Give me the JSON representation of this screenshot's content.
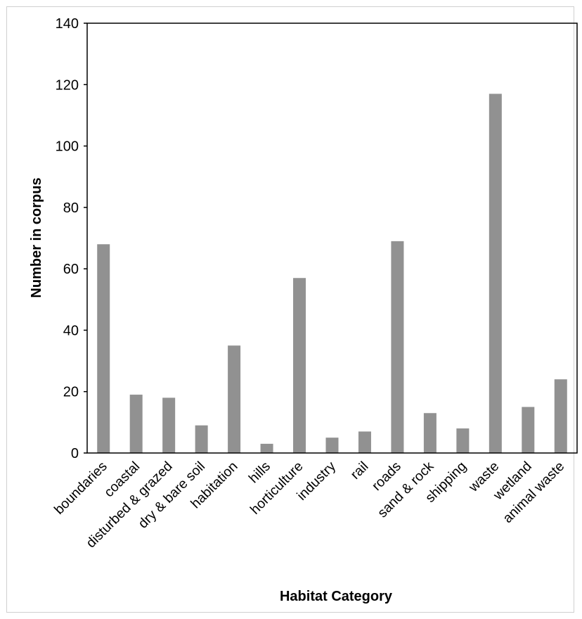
{
  "chart_data": {
    "type": "bar",
    "title": "",
    "xlabel": "Habitat Category",
    "ylabel": "Number in corpus",
    "ylim": [
      0,
      140
    ],
    "yticks": [
      0,
      20,
      40,
      60,
      80,
      100,
      120,
      140
    ],
    "categories": [
      "boundaries",
      "coastal",
      "disturbed & grazed",
      "dry & bare soil",
      "habitation",
      "hills",
      "horticulture",
      "industry",
      "rail",
      "roads",
      "sand & rock",
      "shipping",
      "waste",
      "wetland",
      "animal waste"
    ],
    "values": [
      68,
      19,
      18,
      9,
      35,
      3,
      57,
      5,
      7,
      69,
      13,
      8,
      117,
      15,
      24
    ],
    "bar_color": "#919191",
    "grid": false,
    "legend": "none"
  }
}
